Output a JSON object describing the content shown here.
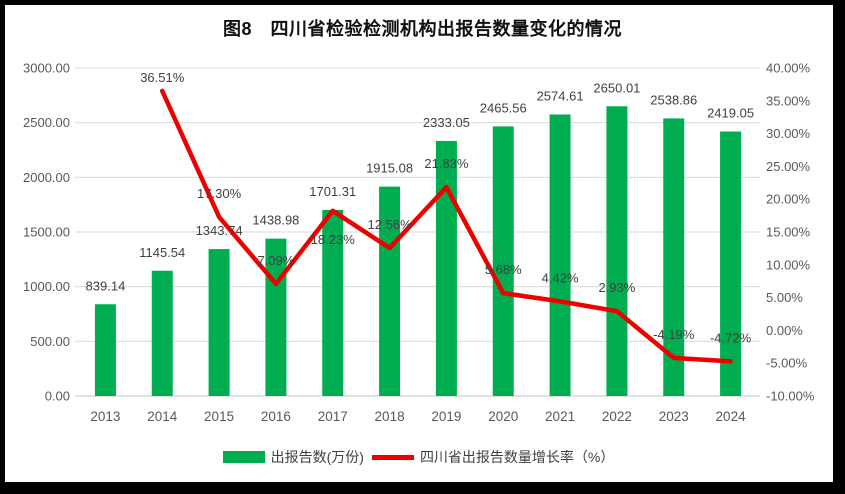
{
  "title": "图8　四川省检验检测机构出报告数量变化的情况",
  "legend": {
    "bar": "出报告数(万份)",
    "line": "四川省出报告数量增长率（%）"
  },
  "colors": {
    "bar": "#00AD50",
    "line": "#EE0000",
    "grid": "#D9D9D9",
    "axis_line": "#C6C6C6",
    "axis_text": "#595959",
    "label_text": "#404040"
  },
  "chart_data": {
    "type": "combo",
    "title": "图8　四川省检验检测机构出报告数量变化的情况",
    "categories": [
      "2013",
      "2014",
      "2015",
      "2016",
      "2017",
      "2018",
      "2019",
      "2020",
      "2021",
      "2022",
      "2023",
      "2024"
    ],
    "series": [
      {
        "name": "出报告数(万份)",
        "type": "bar",
        "axis": "left",
        "values": [
          839.14,
          1145.54,
          1343.74,
          1438.98,
          1701.31,
          1915.08,
          2333.05,
          2465.56,
          2574.61,
          2650.01,
          2538.86,
          2419.05
        ],
        "point_labels": [
          "839.14",
          "1145.54",
          "1343.74",
          "1438.98",
          "1701.31",
          "1915.08",
          "2333.05",
          "2465.56",
          "2574.61",
          "2650.01",
          "2538.86",
          "2419.05"
        ]
      },
      {
        "name": "四川省出报告数量增长率（%）",
        "type": "line",
        "axis": "right",
        "values": [
          null,
          36.51,
          17.3,
          7.09,
          18.23,
          12.56,
          21.83,
          5.68,
          4.42,
          2.93,
          -4.19,
          -4.72
        ],
        "point_labels": [
          null,
          "36.51%",
          "17.30%",
          "7.09%",
          "18.23%",
          "12.56%",
          "21.83%",
          "5.68%",
          "4.42%",
          "2.93%",
          "-4.19%",
          "-4.72%"
        ],
        "label_side": [
          null,
          "above",
          "above",
          "above",
          "below",
          "above",
          "above",
          "above",
          "above",
          "above",
          "above",
          "above"
        ],
        "label_dy": [
          null,
          -9,
          -19,
          -19,
          33,
          -19,
          -19,
          -19,
          -19,
          -19,
          -19,
          -19
        ]
      }
    ],
    "left_axis": {
      "min": 0,
      "max": 3000,
      "step": 500,
      "tick_labels": [
        "0.00",
        "500.00",
        "1000.00",
        "1500.00",
        "2000.00",
        "2500.00",
        "3000.00"
      ]
    },
    "right_axis": {
      "min": -10,
      "max": 40,
      "step": 5,
      "tick_labels": [
        "-10.00%",
        "-5.00%",
        "0.00%",
        "5.00%",
        "10.00%",
        "15.00%",
        "20.00%",
        "25.00%",
        "30.00%",
        "35.00%",
        "40.00%"
      ]
    },
    "grid": "horizontal",
    "legend_position": "bottom"
  }
}
